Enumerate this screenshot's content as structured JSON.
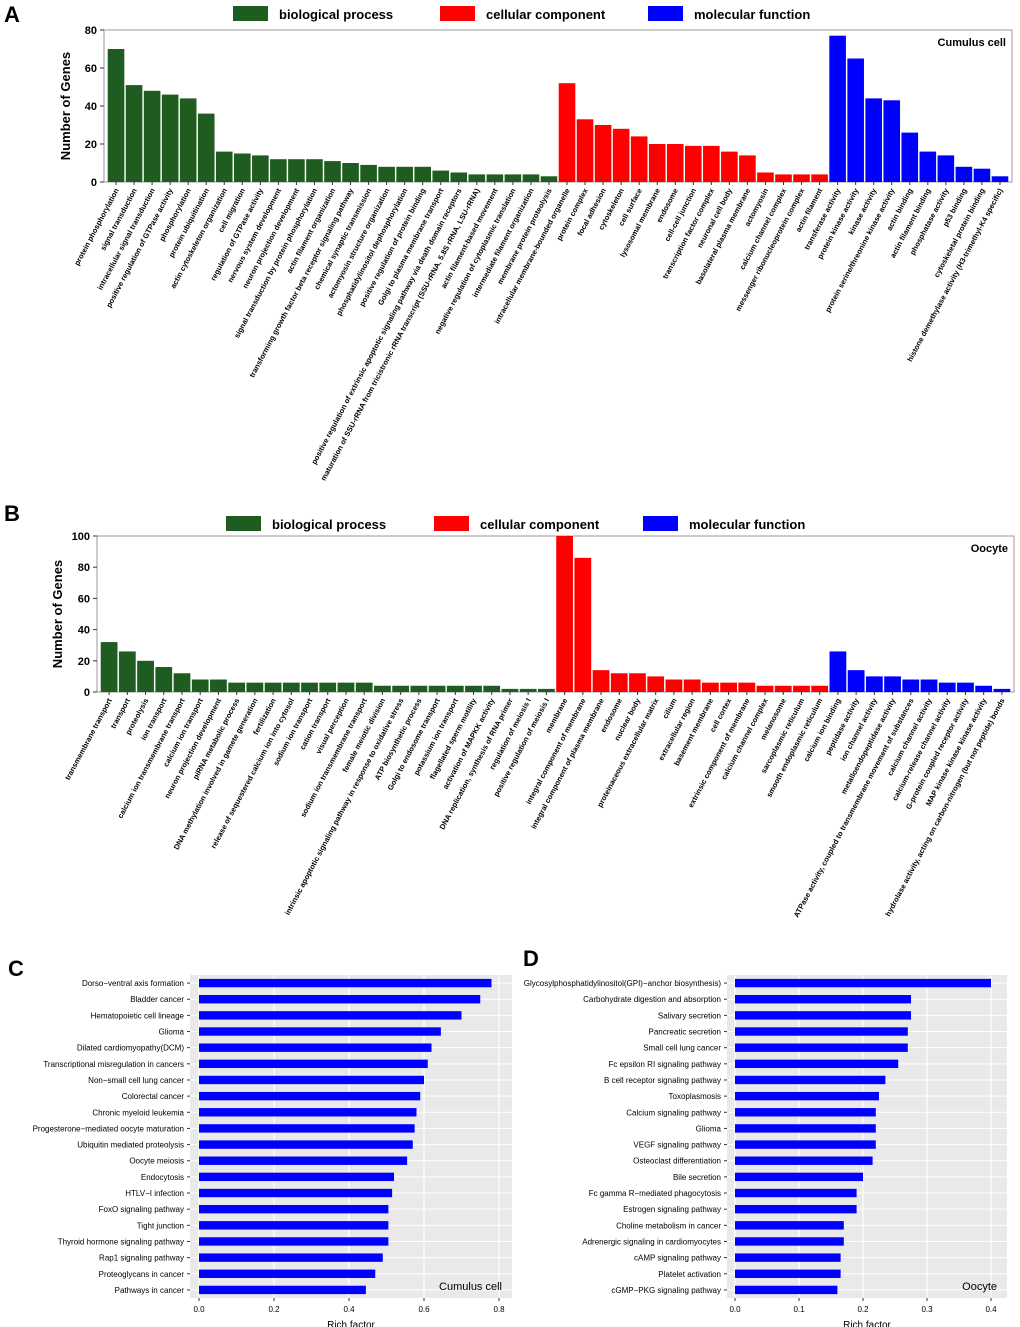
{
  "panels": {
    "A": {
      "letter": "A"
    },
    "B": {
      "letter": "B"
    },
    "C": {
      "letter": "C"
    },
    "D": {
      "letter": "D"
    }
  },
  "legend": {
    "bp": "biological process",
    "cc": "cellular component",
    "mf": "molecular function"
  },
  "colors": {
    "bp": "#1f5c1f",
    "cc": "#ff0000",
    "mf": "#0000ff",
    "panel_bg": "#e9e9e9",
    "grid": "#ffffff"
  },
  "chart_data": [
    {
      "id": "A",
      "type": "bar",
      "title": "Cumulus cell",
      "ylabel": "Number of Genes",
      "ylim": [
        0,
        80
      ],
      "yticks": [
        0,
        20,
        40,
        60,
        80
      ],
      "series": [
        {
          "name": "biological process",
          "key": "bp",
          "categories": [
            "protein phosphorylation",
            "signal transduction",
            "intracellular signal transduction",
            "positive regulation of GTPase activity",
            "phosphorylation",
            "protein ubiquitination",
            "actin cytoskeleton organization",
            "cell migration",
            "regulation of GTPase activity",
            "nervous system development",
            "neuron projection development",
            "signal transduction by protein phosphorylation",
            "actin filament organization",
            "transforming growth factor beta receptor signaling pathway",
            "chemical synaptic transmission",
            "actomyosin structure organization",
            "phosphatidylinositol dephosphorylation",
            "positive regulation of protein binding",
            "Golgi to plasma membrane transport",
            "positive regulation of extrinsic apoptotic signaling pathway via death domain receptors",
            "maturation of SSU-rRNA from tricistronic rRNA transcript (SSU-rRNA, 5.8S rRNA, LSU-rRNA)",
            "actin filament-based movement",
            "negative regulation of cytoplasmic translation",
            "intermediate filament organization",
            "membrane protein proteolysis"
          ],
          "values": [
            70,
            51,
            48,
            46,
            44,
            36,
            16,
            15,
            14,
            12,
            12,
            12,
            11,
            10,
            9,
            8,
            8,
            8,
            6,
            5,
            4,
            4,
            4,
            4,
            3
          ]
        },
        {
          "name": "cellular component",
          "key": "cc",
          "categories": [
            "intracellular membrane-bounded organelle",
            "protein complex",
            "focal adhesion",
            "cytoskeleton",
            "cell surface",
            "lysosomal membrane",
            "endosome",
            "cell-cell junction",
            "transcription factor complex",
            "neuronal cell body",
            "basolateral plasma membrane",
            "actomyosin",
            "calcium channel complex",
            "messenger ribonucleoprotein complex",
            "actin filament"
          ],
          "values": [
            52,
            33,
            30,
            28,
            24,
            20,
            20,
            19,
            19,
            16,
            14,
            5,
            4,
            4,
            4
          ]
        },
        {
          "name": "molecular function",
          "key": "mf",
          "categories": [
            "transferase activity",
            "protein kinase activity",
            "kinase activity",
            "protein serine/threonine kinase activity",
            "actin binding",
            "actin filament binding",
            "phosphatase activity",
            "p53 binding",
            "cytoskeletal protein binding",
            "histone demethylase activity (H3-trimethyl-K4 specific)"
          ],
          "values": [
            77,
            65,
            44,
            43,
            26,
            16,
            14,
            8,
            7,
            3
          ]
        }
      ]
    },
    {
      "id": "B",
      "type": "bar",
      "title": "Oocyte",
      "ylabel": "Number of Genes",
      "ylim": [
        0,
        100
      ],
      "yticks": [
        0,
        20,
        40,
        60,
        80,
        100
      ],
      "series": [
        {
          "name": "biological process",
          "key": "bp",
          "categories": [
            "transmembrane transport",
            "transport",
            "proteolysis",
            "ion transport",
            "calcium ion transmembrane transport",
            "calcium ion transport",
            "neuron projection development",
            "piRNA metabolic process",
            "DNA methylation involved in gamete generation",
            "fertilization",
            "release of sequestered calcium ion into cytosol",
            "sodium ion transport",
            "cation transport",
            "visual perception",
            "sodium ion transmembrane transport",
            "female meiotic division",
            "intrinsic apoptotic signaling pathway in response to oxidative stress",
            "ATP biosynthetic process",
            "Golgi to endosome transport",
            "potassium ion transport",
            "flagellated sperm motility",
            "activation of MAPKK activity",
            "DNA replication, synthesis of RNA primer",
            "regulation of meiosis I",
            "positive regulation of meiosis I"
          ],
          "values": [
            32,
            26,
            20,
            16,
            12,
            8,
            8,
            6,
            6,
            6,
            6,
            6,
            6,
            6,
            6,
            4,
            4,
            4,
            4,
            4,
            4,
            4,
            2,
            2,
            2
          ]
        },
        {
          "name": "cellular component",
          "key": "cc",
          "categories": [
            "membrane",
            "integral component of membrane",
            "integral component of plasma membrane",
            "endosome",
            "nuclear body",
            "proteinaceous extracellular matrix",
            "cilium",
            "extracellular region",
            "basement membrane",
            "cell cortex",
            "extrinsic component of membrane",
            "calcium channel complex",
            "melanosome",
            "sarcoplasmic reticulum",
            "smooth endoplasmic reticulum"
          ],
          "values": [
            100,
            86,
            14,
            12,
            12,
            10,
            8,
            8,
            6,
            6,
            6,
            4,
            4,
            4,
            4
          ]
        },
        {
          "name": "molecular function",
          "key": "mf",
          "categories": [
            "calcium ion binding",
            "peptidase activity",
            "ion channel activity",
            "metalloendopeptidase activity",
            "ATPase activity, coupled to transmembrane movement of substances",
            "calcium channel activity",
            "calcium-release channel activity",
            "G-protein coupled receptor activity",
            "MAP kinase kinase kinase activity",
            "hydrolase activity, acting on carbon-nitrogen (but not peptide) bonds"
          ],
          "values": [
            26,
            14,
            10,
            10,
            8,
            8,
            6,
            6,
            4,
            2
          ]
        }
      ]
    },
    {
      "id": "C",
      "type": "bar",
      "orientation": "horizontal",
      "title": "Cumulus cell",
      "xlabel": "Rich factor",
      "xlim": [
        0,
        0.8
      ],
      "xticks": [
        0.0,
        0.2,
        0.4,
        0.6,
        0.8
      ],
      "tick_labels": [
        "0.0",
        "0.2",
        "0.4",
        "0.6",
        "0.8"
      ],
      "categories": [
        "Dorso−ventral axis formation",
        "Bladder cancer",
        "Hematopoietic cell lineage",
        "Glioma",
        "Dilated cardiomyopathy(DCM)",
        "Transcriptional misregulation in cancers",
        "Non−small cell lung cancer",
        "Colorectal cancer",
        "Chronic myeloid leukemia",
        "Progesterone−mediated oocyte maturation",
        "Ubiquitin mediated proteolysis",
        "Oocyte meiosis",
        "Endocytosis",
        "HTLV−I infection",
        "FoxO signaling pathway",
        "Tight junction",
        "Thyroid hormone signaling pathway",
        "Rap1 signaling pathway",
        "Proteoglycans in cancer",
        "Pathways in cancer"
      ],
      "values": [
        0.78,
        0.75,
        0.7,
        0.645,
        0.62,
        0.61,
        0.6,
        0.59,
        0.58,
        0.575,
        0.57,
        0.555,
        0.52,
        0.515,
        0.505,
        0.505,
        0.505,
        0.49,
        0.47,
        0.445
      ]
    },
    {
      "id": "D",
      "type": "bar",
      "orientation": "horizontal",
      "title": "Oocyte",
      "xlabel": "Rich factor",
      "xlim": [
        0,
        0.4
      ],
      "xticks": [
        0.0,
        0.1,
        0.2,
        0.3,
        0.4
      ],
      "tick_labels": [
        "0.0",
        "0.1",
        "0.2",
        "0.3",
        "0.4"
      ],
      "categories": [
        "Glycosylphosphatidylinositol(GPI)−anchor biosynthesis)",
        "Carbohydrate digestion and absorption",
        "Salivary secretion",
        "Pancreatic secretion",
        "Small cell lung cancer",
        "Fc epsilon RI signaling pathway",
        "B cell receptor signaling pathway",
        "Toxoplasmosis",
        "Calcium signaling pathway",
        "Glioma",
        "VEGF signaling pathway",
        "Osteoclast differentiation",
        "Bile secretion",
        "Fc gamma R−mediated phagocytosis",
        "Estrogen signaling pathway",
        "Choline metabolism in cancer",
        "Adrenergic signaling in cardiomyocytes",
        "cAMP signaling pathway",
        "Platelet activation",
        "cGMP−PKG signaling pathway"
      ],
      "values": [
        0.4,
        0.275,
        0.275,
        0.27,
        0.27,
        0.255,
        0.235,
        0.225,
        0.22,
        0.22,
        0.22,
        0.215,
        0.2,
        0.19,
        0.19,
        0.17,
        0.17,
        0.165,
        0.165,
        0.16
      ]
    }
  ]
}
